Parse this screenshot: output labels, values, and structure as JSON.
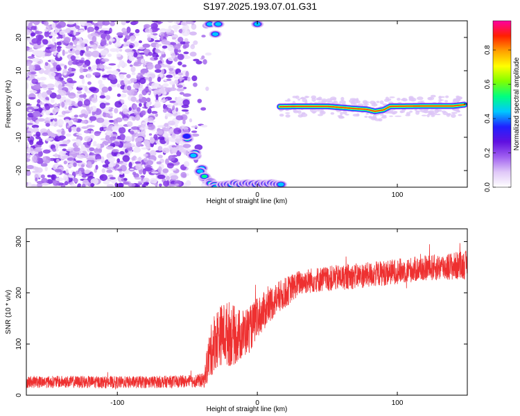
{
  "title": "S197.2025.193.07.01.G31",
  "chart_data": [
    {
      "type": "heatmap",
      "title": "S197.2025.193.07.01.G31",
      "xlabel": "Height of straight line (km)",
      "ylabel": "Frequency (Hz)",
      "xlim": [
        -165,
        150
      ],
      "ylim": [
        -25,
        25
      ],
      "xticks": [
        -100,
        0,
        100
      ],
      "yticks": [
        -20,
        -10,
        0,
        10,
        20
      ],
      "colorbar": {
        "label": "Normalized spectral amplitude",
        "range": [
          0,
          0.97
        ],
        "ticks": [
          0.0,
          0.2,
          0.4,
          0.6,
          0.8
        ],
        "colors": [
          "#ffffff",
          "#e0c8f8",
          "#a060f0",
          "#6010e0",
          "#2020ff",
          "#00c8ff",
          "#00ff80",
          "#80ff00",
          "#ffff00",
          "#ffa000",
          "#ff2000",
          "#ff00a0"
        ]
      },
      "features": {
        "noise_region_x": [
          -165,
          -50
        ],
        "upper_right_feature": [
          [
            -34,
            24
          ],
          [
            -30,
            21
          ],
          [
            -28,
            24
          ],
          [
            0,
            24
          ]
        ],
        "lower_curve": [
          [
            -50,
            -10
          ],
          [
            -45,
            -15
          ],
          [
            -40,
            -20
          ],
          [
            -37,
            -22
          ],
          [
            -33,
            -24
          ],
          [
            -30,
            -25
          ]
        ],
        "bottom_band": {
          "x": [
            -25,
            17
          ],
          "y": -24
        },
        "signal_line": [
          [
            16,
            -0.8
          ],
          [
            30,
            -0.7
          ],
          [
            50,
            -0.7
          ],
          [
            70,
            -1.4
          ],
          [
            78,
            -1.6
          ],
          [
            84,
            -2.2
          ],
          [
            90,
            -1.8
          ],
          [
            95,
            -0.7
          ],
          [
            120,
            -0.6
          ],
          [
            140,
            -0.6
          ],
          [
            148,
            -0.2
          ]
        ]
      }
    },
    {
      "type": "line",
      "xlabel": "Height of straight line (km)",
      "ylabel": "SNR (10 * v/v)",
      "xlim": [
        -165,
        150
      ],
      "ylim": [
        0,
        325
      ],
      "xticks": [
        -100,
        0,
        100
      ],
      "yticks": [
        0,
        100,
        200,
        300
      ],
      "series": [
        {
          "color": "#ee3030",
          "envelope_x": [
            -165,
            -130,
            -100,
            -70,
            -50,
            -38,
            -35,
            -30,
            -25,
            -20,
            -15,
            -10,
            -5,
            0,
            10,
            20,
            30,
            40,
            60,
            80,
            100,
            120,
            140,
            150
          ],
          "envelope_mean": [
            26,
            26,
            25,
            26,
            27,
            29,
            70,
            110,
            120,
            120,
            115,
            120,
            130,
            150,
            180,
            200,
            220,
            225,
            230,
            235,
            242,
            248,
            252,
            255
          ],
          "envelope_spread": [
            12,
            12,
            12,
            12,
            12,
            14,
            45,
            60,
            60,
            65,
            55,
            50,
            45,
            40,
            35,
            30,
            25,
            25,
            25,
            25,
            25,
            25,
            28,
            28
          ]
        }
      ]
    }
  ]
}
